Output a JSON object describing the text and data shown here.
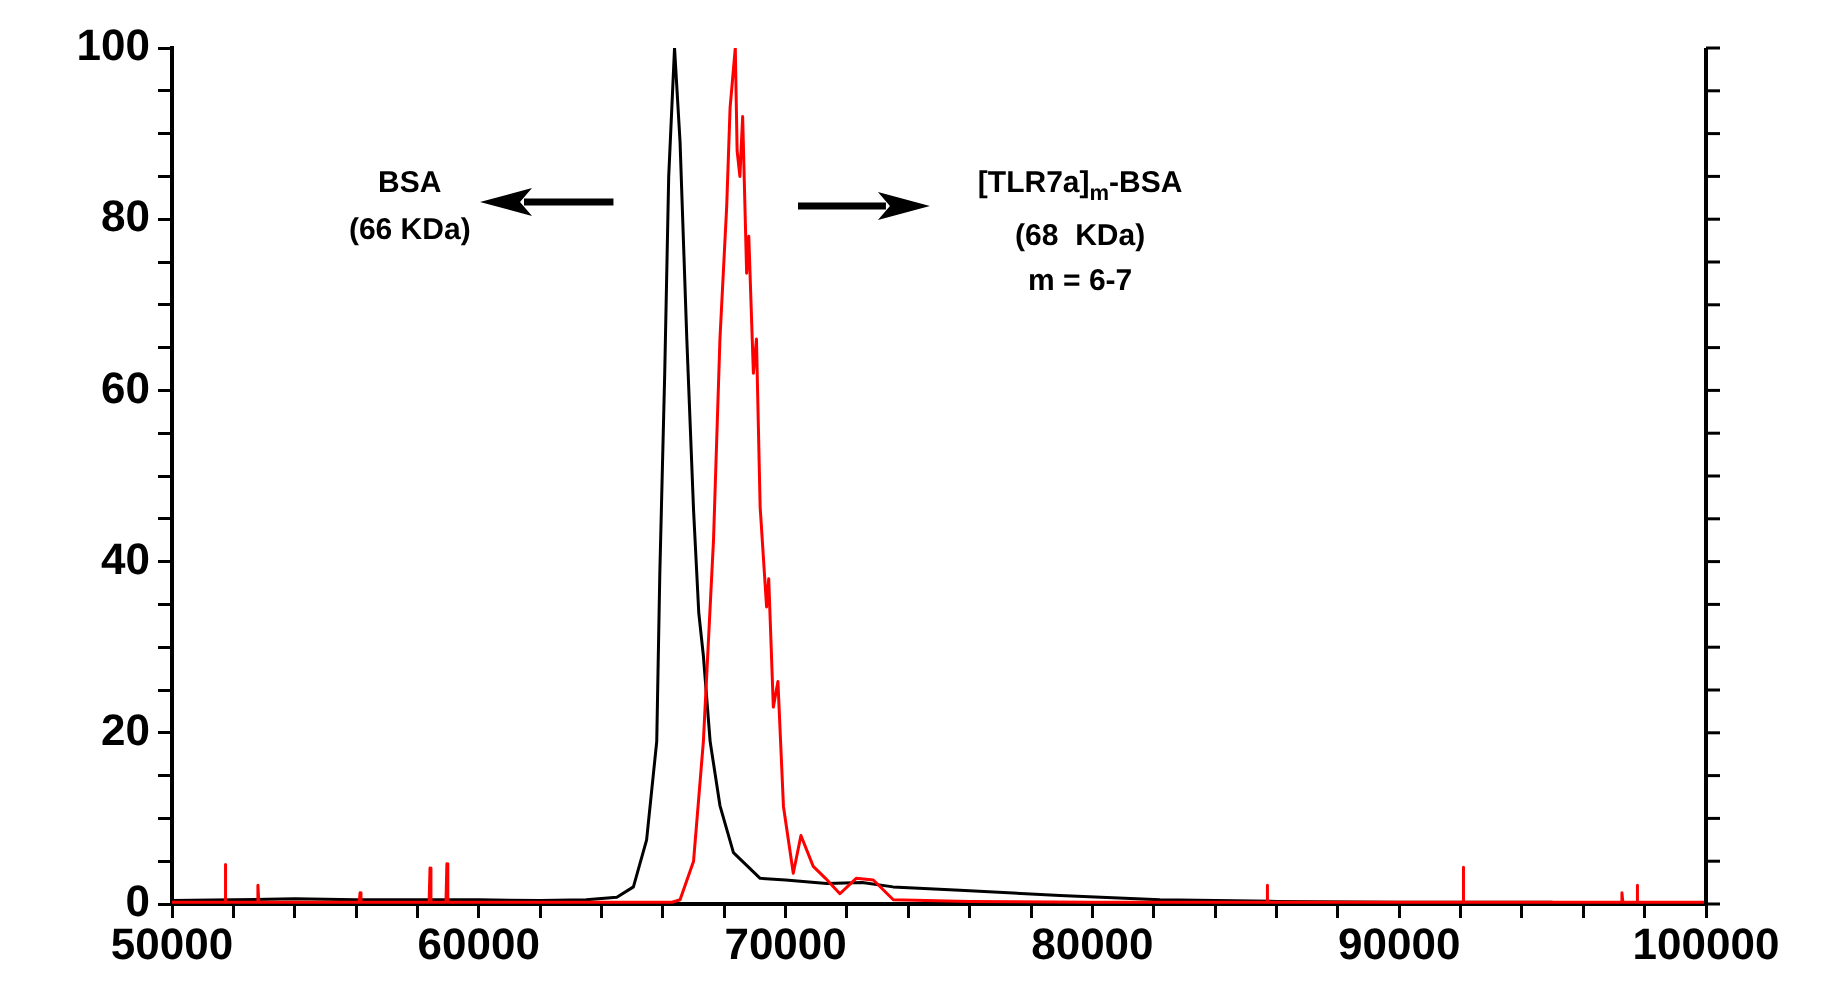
{
  "chart_data": {
    "type": "line",
    "marker": "none",
    "line_style": "solid",
    "grid": false,
    "legend": false,
    "xlim": [
      50000,
      100000
    ],
    "xticks": [
      50000,
      {
        "value": 52000,
        "label": null
      },
      {
        "value": 54000,
        "label": null
      },
      {
        "value": 56000,
        "label": null
      },
      {
        "value": 58000,
        "label": null
      },
      60000,
      {
        "value": 62000,
        "label": null
      },
      {
        "value": 64000,
        "label": null
      },
      {
        "value": 66000,
        "label": null
      },
      {
        "value": 68000,
        "label": null
      },
      70000,
      {
        "value": 72000,
        "label": null
      },
      {
        "value": 74000,
        "label": null
      },
      {
        "value": 76000,
        "label": null
      },
      {
        "value": 78000,
        "label": null
      },
      80000,
      {
        "value": 82000,
        "label": null
      },
      {
        "value": 84000,
        "label": null
      },
      {
        "value": 86000,
        "label": null
      },
      {
        "value": 88000,
        "label": null
      },
      90000,
      {
        "value": 92000,
        "label": null
      },
      {
        "value": 94000,
        "label": null
      },
      {
        "value": 96000,
        "label": null
      },
      {
        "value": 98000,
        "label": null
      },
      100000
    ],
    "ylim": [
      0,
      100
    ],
    "yticks": [
      0,
      {
        "value": 5,
        "label": null
      },
      {
        "value": 10,
        "label": null
      },
      {
        "value": 15,
        "label": null
      },
      20,
      {
        "value": 25,
        "label": null
      },
      {
        "value": 30,
        "label": null
      },
      {
        "value": 35,
        "label": null
      },
      40,
      {
        "value": 45,
        "label": null
      },
      {
        "value": 50,
        "label": null
      },
      {
        "value": 55,
        "label": null
      },
      60,
      {
        "value": 65,
        "label": null
      },
      {
        "value": 70,
        "label": null
      },
      {
        "value": 75,
        "label": null
      },
      80,
      {
        "value": 85,
        "label": null
      },
      {
        "value": 90,
        "label": null
      },
      {
        "value": 95,
        "label": null
      },
      100
    ],
    "annotations": [
      "BSA",
      "(66 KDa)",
      "[TLR7a]$_{m}$-BSA",
      "(68  KDa)",
      "m = 6-7"
    ],
    "series": [
      {
        "color": "#000000",
        "x": [
          50000,
          52000,
          54000,
          56000,
          58000,
          60000,
          62000,
          63500,
          64500,
          65040,
          65470,
          65800,
          65900,
          66060,
          66190,
          66380,
          66560,
          66780,
          67000,
          67170,
          67320,
          67540,
          67860,
          68300,
          69170,
          70000,
          71340,
          72500,
          73500,
          75680,
          78940,
          82200,
          86000,
          90000,
          95000
        ],
        "values": [
          0.4,
          0.5,
          0.6,
          0.5,
          0.5,
          0.5,
          0.4,
          0.5,
          0.8,
          2.0,
          7.5,
          19,
          38.6,
          62,
          85,
          100,
          89,
          66,
          46,
          34,
          29,
          19,
          11.5,
          6,
          3,
          2.8,
          2.4,
          2.5,
          2,
          1.6,
          1,
          0.5,
          0.3,
          0.2,
          0.2
        ]
      },
      {
        "color": "#ff0000",
        "x": [
          50000,
          51700,
          51730,
          51760,
          52770,
          52800,
          52830,
          56100,
          56130,
          56160,
          58380,
          58410,
          58440,
          58930,
          58960,
          58990,
          62000,
          66300,
          66560,
          67000,
          67320,
          67650,
          67860,
          68080,
          68190,
          68360,
          68420,
          68510,
          68600,
          68730,
          68800,
          68950,
          69050,
          69170,
          69380,
          69450,
          69600,
          69750,
          69930,
          70250,
          70500,
          70900,
          71300,
          71770,
          72300,
          72860,
          73510,
          76000,
          80000,
          85660,
          85690,
          85720,
          92050,
          92080,
          92110,
          97230,
          97260,
          97290,
          97720,
          97750,
          97780,
          100000
        ],
        "values": [
          0.2,
          0.2,
          4.6,
          0.2,
          0.2,
          2.2,
          0.2,
          0.2,
          1.3,
          0.2,
          0.2,
          4.2,
          0.2,
          0.2,
          4.7,
          0.2,
          0.2,
          0.2,
          0.5,
          5,
          19,
          42.5,
          66,
          81.5,
          93,
          100,
          88,
          85,
          92,
          73.7,
          78,
          62,
          66,
          46.4,
          34.7,
          38,
          23,
          26,
          11.4,
          3.6,
          8,
          4.4,
          3,
          1.2,
          3,
          2.8,
          0.5,
          0.3,
          0.2,
          0.2,
          2.2,
          0.2,
          0.2,
          4.3,
          0.2,
          0.2,
          1.3,
          0.2,
          0.2,
          2.2,
          0.2,
          0.2
        ]
      }
    ]
  }
}
